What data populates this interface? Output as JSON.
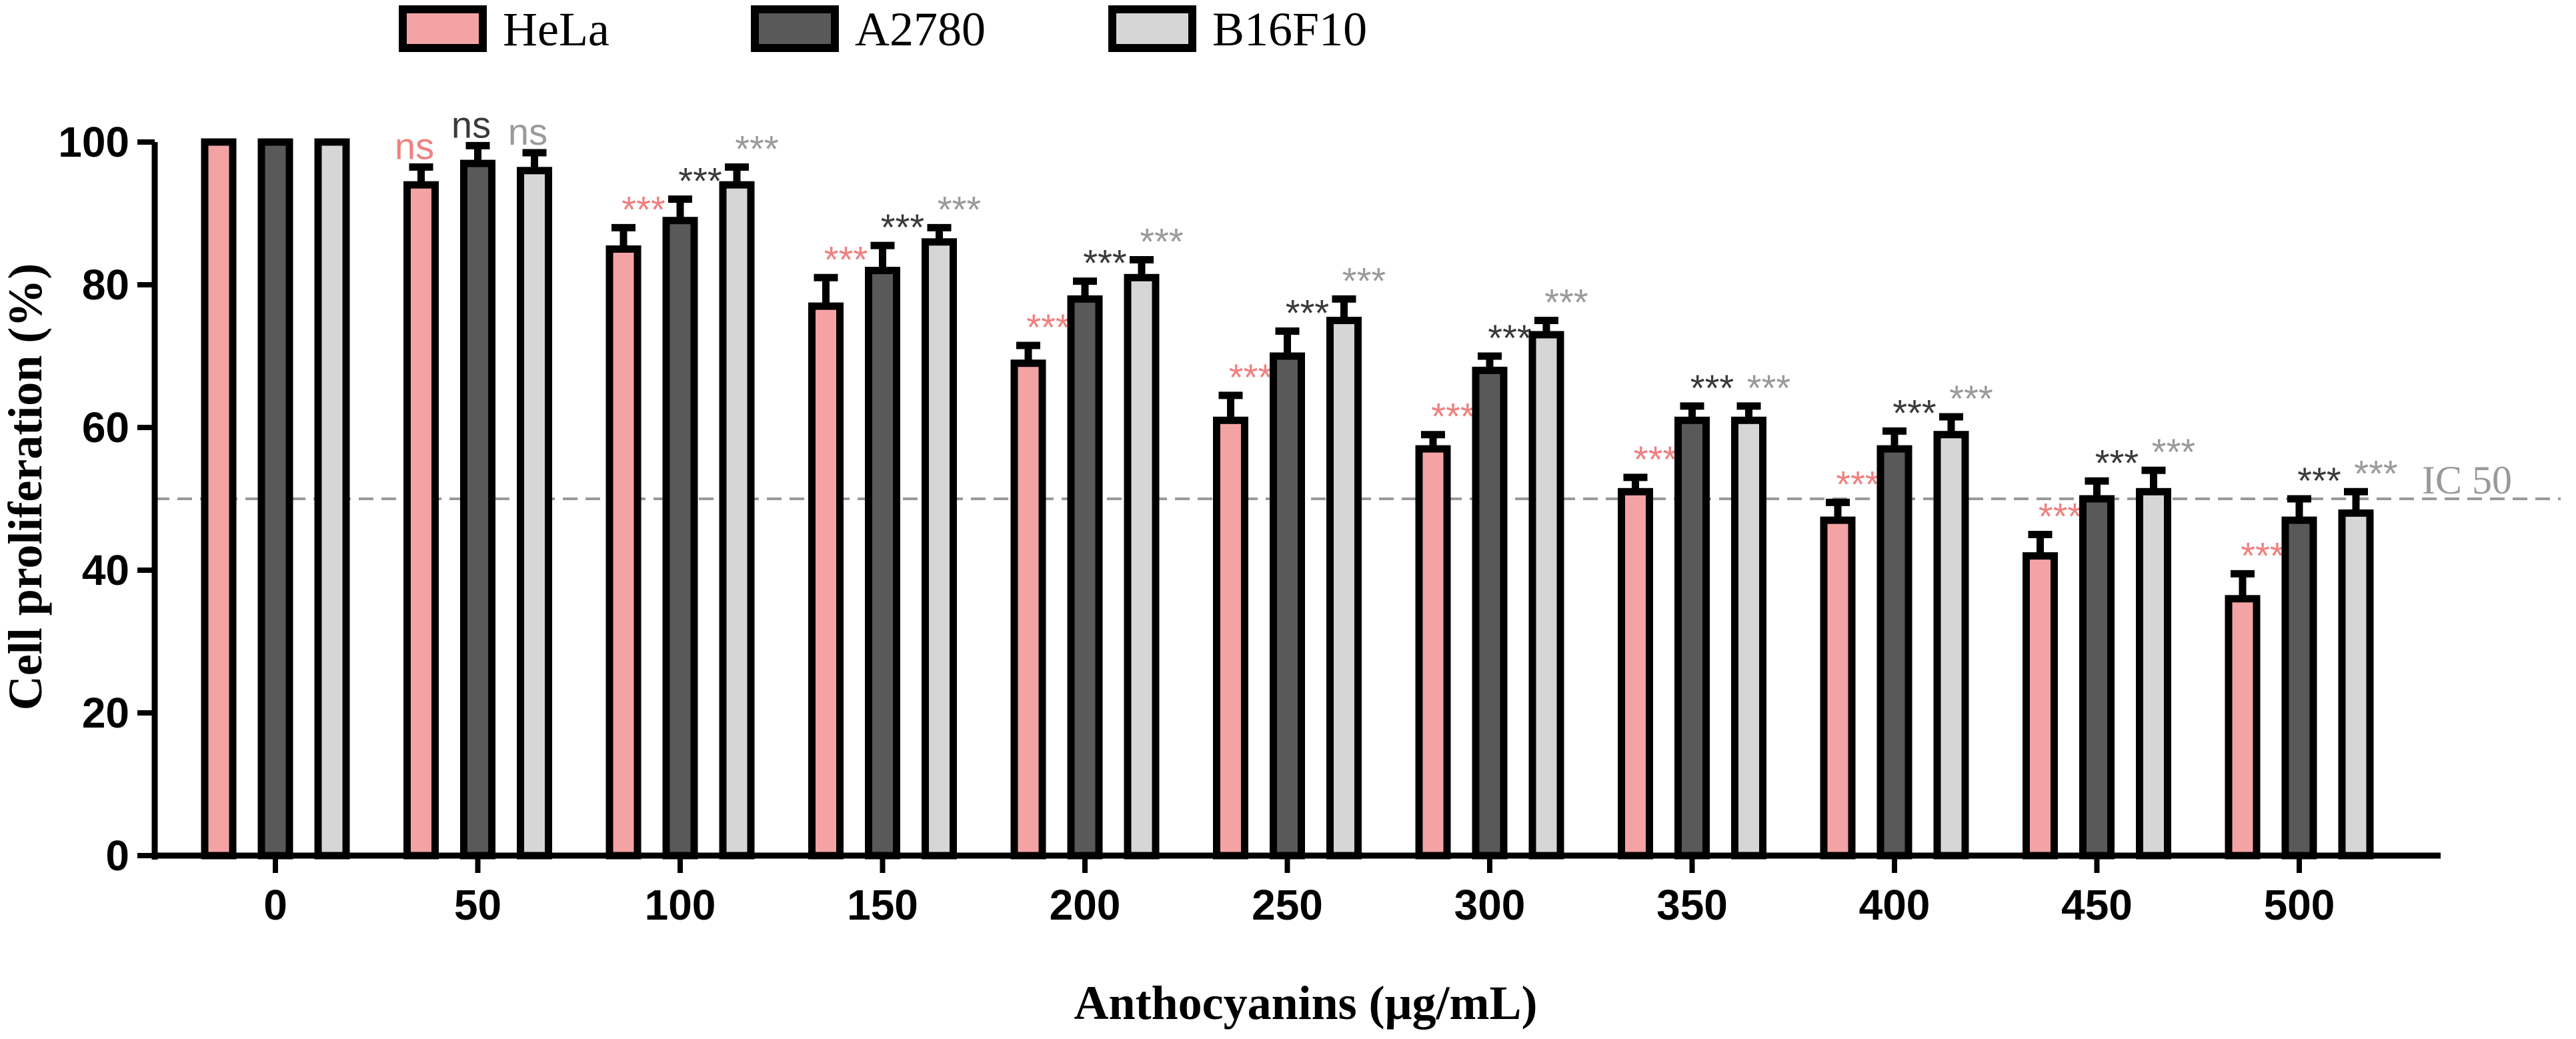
{
  "chart_data": {
    "type": "bar",
    "title": "",
    "xlabel": "Anthocyanins (μg/mL)",
    "ylabel": "Cell proliferation (%)",
    "ylim": [
      0,
      100
    ],
    "yticks": [
      0,
      20,
      40,
      60,
      80,
      100
    ],
    "categories": [
      "0",
      "50",
      "100",
      "150",
      "200",
      "250",
      "300",
      "350",
      "400",
      "450",
      "500"
    ],
    "series": [
      {
        "name": "HeLa",
        "color": "#f4a3a4",
        "sig_color": "#f08080",
        "values": [
          100,
          94,
          85,
          77,
          69,
          61,
          57,
          51,
          47,
          42,
          36
        ],
        "errors": [
          0,
          2.5,
          3,
          4,
          2.5,
          3.5,
          2,
          2,
          2.5,
          3,
          3.5
        ],
        "significance": [
          "",
          "ns",
          "***",
          "***",
          "***",
          "***",
          "***",
          "***",
          "***",
          "***",
          "***"
        ]
      },
      {
        "name": "A2780",
        "color": "#595959",
        "sig_color": "#3a3a3a",
        "values": [
          100,
          97,
          89,
          82,
          78,
          70,
          68,
          61,
          57,
          50,
          47
        ],
        "errors": [
          0,
          2.5,
          3,
          3.5,
          2.5,
          3.5,
          2,
          2,
          2.5,
          2.5,
          3
        ],
        "significance": [
          "",
          "ns",
          "***",
          "***",
          "***",
          "***",
          "***",
          "***",
          "***",
          "***",
          "***"
        ]
      },
      {
        "name": "B16F10",
        "color": "#d6d6d6",
        "sig_color": "#9a9a9a",
        "values": [
          100,
          96,
          94,
          86,
          81,
          75,
          73,
          61,
          59,
          51,
          48
        ],
        "errors": [
          0,
          2.5,
          2.5,
          2,
          2.5,
          3,
          2,
          2,
          2.5,
          3,
          3
        ],
        "significance": [
          "",
          "ns",
          "***",
          "***",
          "***",
          "***",
          "***",
          "***",
          "***",
          "***",
          "***"
        ]
      }
    ],
    "reference_line": {
      "value": 50,
      "label": "IC 50",
      "color": "#999999"
    },
    "legend_position": "top-left"
  }
}
